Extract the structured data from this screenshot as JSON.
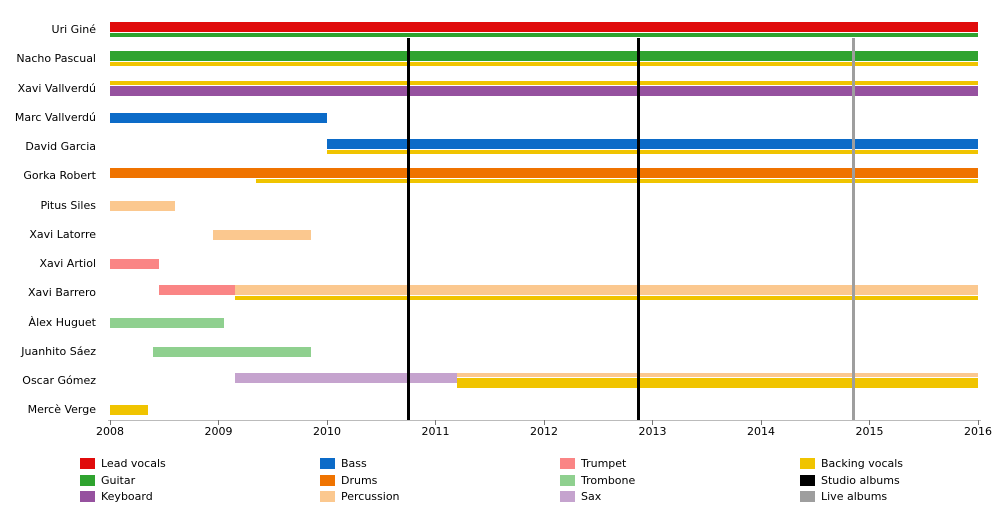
{
  "chart_data": {
    "type": "bar",
    "subtype": "membership-timeline-gantt",
    "title": "",
    "x_axis": {
      "min": 2008,
      "max": 2016,
      "ticks": [
        2008,
        2009,
        2010,
        2011,
        2012,
        2013,
        2014,
        2015,
        2016
      ]
    },
    "roles": {
      "Lead vocals": "#e00b0b",
      "Guitar": "#2fa32f",
      "Keyboard": "#96519f",
      "Bass": "#0c6bc8",
      "Drums": "#ef7300",
      "Percussion": "#fbc88f",
      "Trumpet": "#fa8585",
      "Trombone": "#8fd08f",
      "Sax": "#c5a3ce",
      "Backing vocals": "#f0c400"
    },
    "members": [
      {
        "name": "Uri Giné",
        "bars": [
          {
            "role": "Lead vocals",
            "start": 2008,
            "end": 2016,
            "band": "main"
          },
          {
            "role": "Guitar",
            "start": 2008,
            "end": 2016,
            "band": "thin_below"
          }
        ]
      },
      {
        "name": "Nacho Pascual",
        "bars": [
          {
            "role": "Guitar",
            "start": 2008,
            "end": 2016,
            "band": "main"
          },
          {
            "role": "Backing vocals",
            "start": 2008,
            "end": 2016,
            "band": "thin_below"
          }
        ]
      },
      {
        "name": "Xavi Vallverdú",
        "bars": [
          {
            "role": "Backing vocals",
            "start": 2008,
            "end": 2016,
            "band": "thin_above"
          },
          {
            "role": "Keyboard",
            "start": 2008,
            "end": 2016,
            "band": "main_low"
          }
        ]
      },
      {
        "name": "Marc Vallverdú",
        "bars": [
          {
            "role": "Bass",
            "start": 2008,
            "end": 2010,
            "band": "single"
          }
        ]
      },
      {
        "name": "David Garcia",
        "bars": [
          {
            "role": "Bass",
            "start": 2010,
            "end": 2016,
            "band": "main"
          },
          {
            "role": "Backing vocals",
            "start": 2010,
            "end": 2016,
            "band": "thin_below"
          }
        ]
      },
      {
        "name": "Gorka Robert",
        "bars": [
          {
            "role": "Drums",
            "start": 2008,
            "end": 2016,
            "band": "main"
          },
          {
            "role": "Backing vocals",
            "start": 2009.35,
            "end": 2016,
            "band": "thin_below"
          }
        ]
      },
      {
        "name": "Pitus Siles",
        "bars": [
          {
            "role": "Percussion",
            "start": 2008,
            "end": 2008.6,
            "band": "single"
          }
        ]
      },
      {
        "name": "Xavi Latorre",
        "bars": [
          {
            "role": "Percussion",
            "start": 2008.95,
            "end": 2009.85,
            "band": "single"
          }
        ]
      },
      {
        "name": "Xavi Artiol",
        "bars": [
          {
            "role": "Trumpet",
            "start": 2008,
            "end": 2008.45,
            "band": "single"
          }
        ]
      },
      {
        "name": "Xavi Barrero",
        "bars": [
          {
            "role": "Trumpet",
            "start": 2008.45,
            "end": 2009.15,
            "band": "main"
          },
          {
            "role": "Percussion",
            "start": 2009.15,
            "end": 2016,
            "band": "main"
          },
          {
            "role": "Backing vocals",
            "start": 2009.15,
            "end": 2016,
            "band": "thin_below"
          }
        ]
      },
      {
        "name": "Àlex Huguet",
        "bars": [
          {
            "role": "Trombone",
            "start": 2008,
            "end": 2009.05,
            "band": "single"
          }
        ]
      },
      {
        "name": "Juanhito Sáez",
        "bars": [
          {
            "role": "Trombone",
            "start": 2008.4,
            "end": 2009.85,
            "band": "single"
          }
        ]
      },
      {
        "name": "Oscar Gómez",
        "bars": [
          {
            "role": "Sax",
            "start": 2009.15,
            "end": 2011.2,
            "band": "main"
          },
          {
            "role": "Percussion",
            "start": 2011.2,
            "end": 2016,
            "band": "thin_above"
          },
          {
            "role": "Backing vocals",
            "start": 2011.2,
            "end": 2016,
            "band": "main_low"
          }
        ]
      },
      {
        "name": "Mercè Verge",
        "bars": [
          {
            "role": "Backing vocals",
            "start": 2008,
            "end": 2008.35,
            "band": "single"
          }
        ]
      }
    ],
    "events": [
      {
        "type": "Studio albums",
        "at": 2010.75,
        "color": "#000000",
        "width": 3
      },
      {
        "type": "Studio albums",
        "at": 2012.87,
        "color": "#000000",
        "width": 3
      },
      {
        "type": "Live albums",
        "at": 2014.85,
        "color": "#9e9e9e",
        "width": 3
      }
    ],
    "legend": [
      [
        {
          "label": "Lead vocals",
          "color": "#e00b0b"
        },
        {
          "label": "Guitar",
          "color": "#2fa32f"
        },
        {
          "label": "Keyboard",
          "color": "#96519f"
        }
      ],
      [
        {
          "label": "Bass",
          "color": "#0c6bc8"
        },
        {
          "label": "Drums",
          "color": "#ef7300"
        },
        {
          "label": "Percussion",
          "color": "#fbc88f"
        }
      ],
      [
        {
          "label": "Trumpet",
          "color": "#fa8585"
        },
        {
          "label": "Trombone",
          "color": "#8fd08f"
        },
        {
          "label": "Sax",
          "color": "#c5a3ce"
        }
      ],
      [
        {
          "label": "Backing vocals",
          "color": "#f0c400"
        },
        {
          "label": "Studio albums",
          "color": "#000000"
        },
        {
          "label": "Live albums",
          "color": "#9e9e9e"
        }
      ]
    ]
  }
}
